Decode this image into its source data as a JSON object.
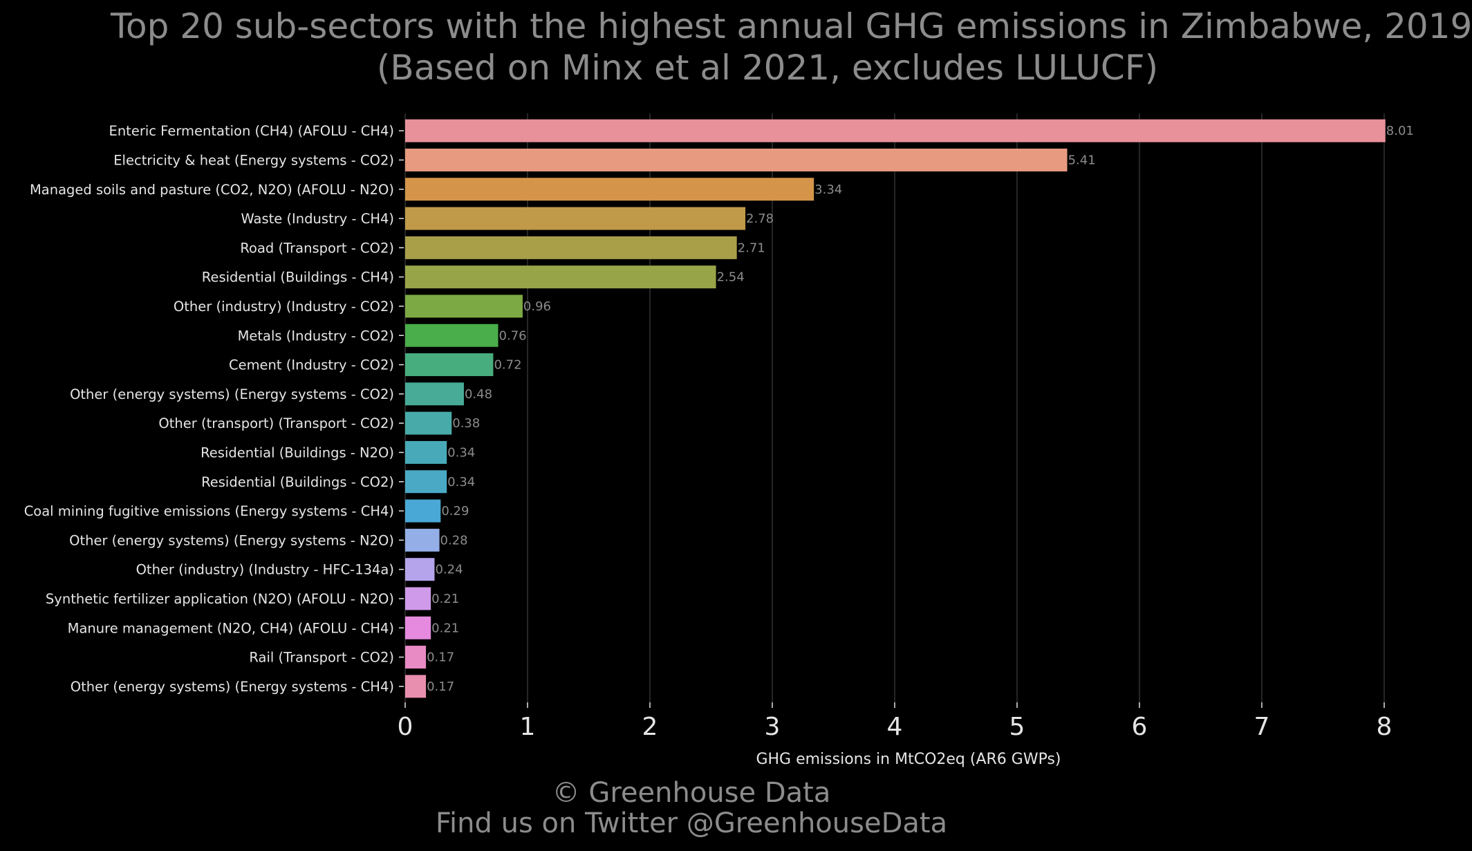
{
  "chart_data": {
    "type": "bar",
    "orientation": "horizontal",
    "title": "Top 20 sub-sectors with the highest annual GHG emissions in Zimbabwe, 2019",
    "subtitle": "(Based on Minx et al 2021, excludes LULUCF)",
    "xlabel": "GHG emissions in MtCO2eq (AR6 GWPs)",
    "ylabel": "",
    "xlim": [
      0,
      8
    ],
    "xticks": [
      "0",
      "1",
      "2",
      "3",
      "4",
      "5",
      "6",
      "7",
      "8"
    ],
    "grid": "vertical",
    "categories": [
      "Enteric Fermentation (CH4) (AFOLU - CH4)",
      "Electricity & heat (Energy systems - CO2)",
      "Managed soils and pasture (CO2, N2O) (AFOLU - N2O)",
      "Waste (Industry - CH4)",
      "Road (Transport - CO2)",
      "Residential (Buildings - CH4)",
      "Other (industry) (Industry - CO2)",
      "Metals (Industry - CO2)",
      "Cement (Industry - CO2)",
      "Other (energy systems) (Energy systems - CO2)",
      "Other (transport) (Transport - CO2)",
      "Residential (Buildings - N2O)",
      "Residential (Buildings - CO2)",
      "Coal mining fugitive emissions (Energy systems - CH4)",
      "Other (energy systems) (Energy systems - N2O)",
      "Other (industry) (Industry - HFC-134a)",
      "Synthetic fertilizer application (N2O) (AFOLU - N2O)",
      "Manure management (N2O, CH4) (AFOLU - CH4)",
      "Rail  (Transport - CO2)",
      "Other (energy systems) (Energy systems - CH4)"
    ],
    "values": [
      8.01,
      5.41,
      3.34,
      2.78,
      2.71,
      2.54,
      0.96,
      0.76,
      0.72,
      0.48,
      0.38,
      0.34,
      0.34,
      0.29,
      0.28,
      0.24,
      0.21,
      0.21,
      0.17,
      0.17
    ],
    "value_labels": [
      "8.01",
      "5.41",
      "3.34",
      "2.78",
      "2.71",
      "2.54",
      "0.96",
      "0.76",
      "0.72",
      "0.48",
      "0.38",
      "0.34",
      "0.34",
      "0.29",
      "0.28",
      "0.24",
      "0.21",
      "0.21",
      "0.17",
      "0.17"
    ],
    "colors": [
      "#e8919b",
      "#e89a80",
      "#d4954a",
      "#c09a48",
      "#a99f48",
      "#98a448",
      "#7da944",
      "#4aae4a",
      "#48ad7e",
      "#48ab98",
      "#48aaa9",
      "#48aab8",
      "#4aaac6",
      "#4aa8d6",
      "#94aee8",
      "#b5a4ec",
      "#d09aea",
      "#e68ae0",
      "#e88ac4",
      "#e88eae"
    ]
  },
  "footer": {
    "line1": "© Greenhouse Data",
    "line2": "Find us on Twitter @GreenhouseData"
  },
  "theme": {
    "background": "#000000",
    "grid_color": "#333333",
    "title_color": "#8c8c8c"
  }
}
